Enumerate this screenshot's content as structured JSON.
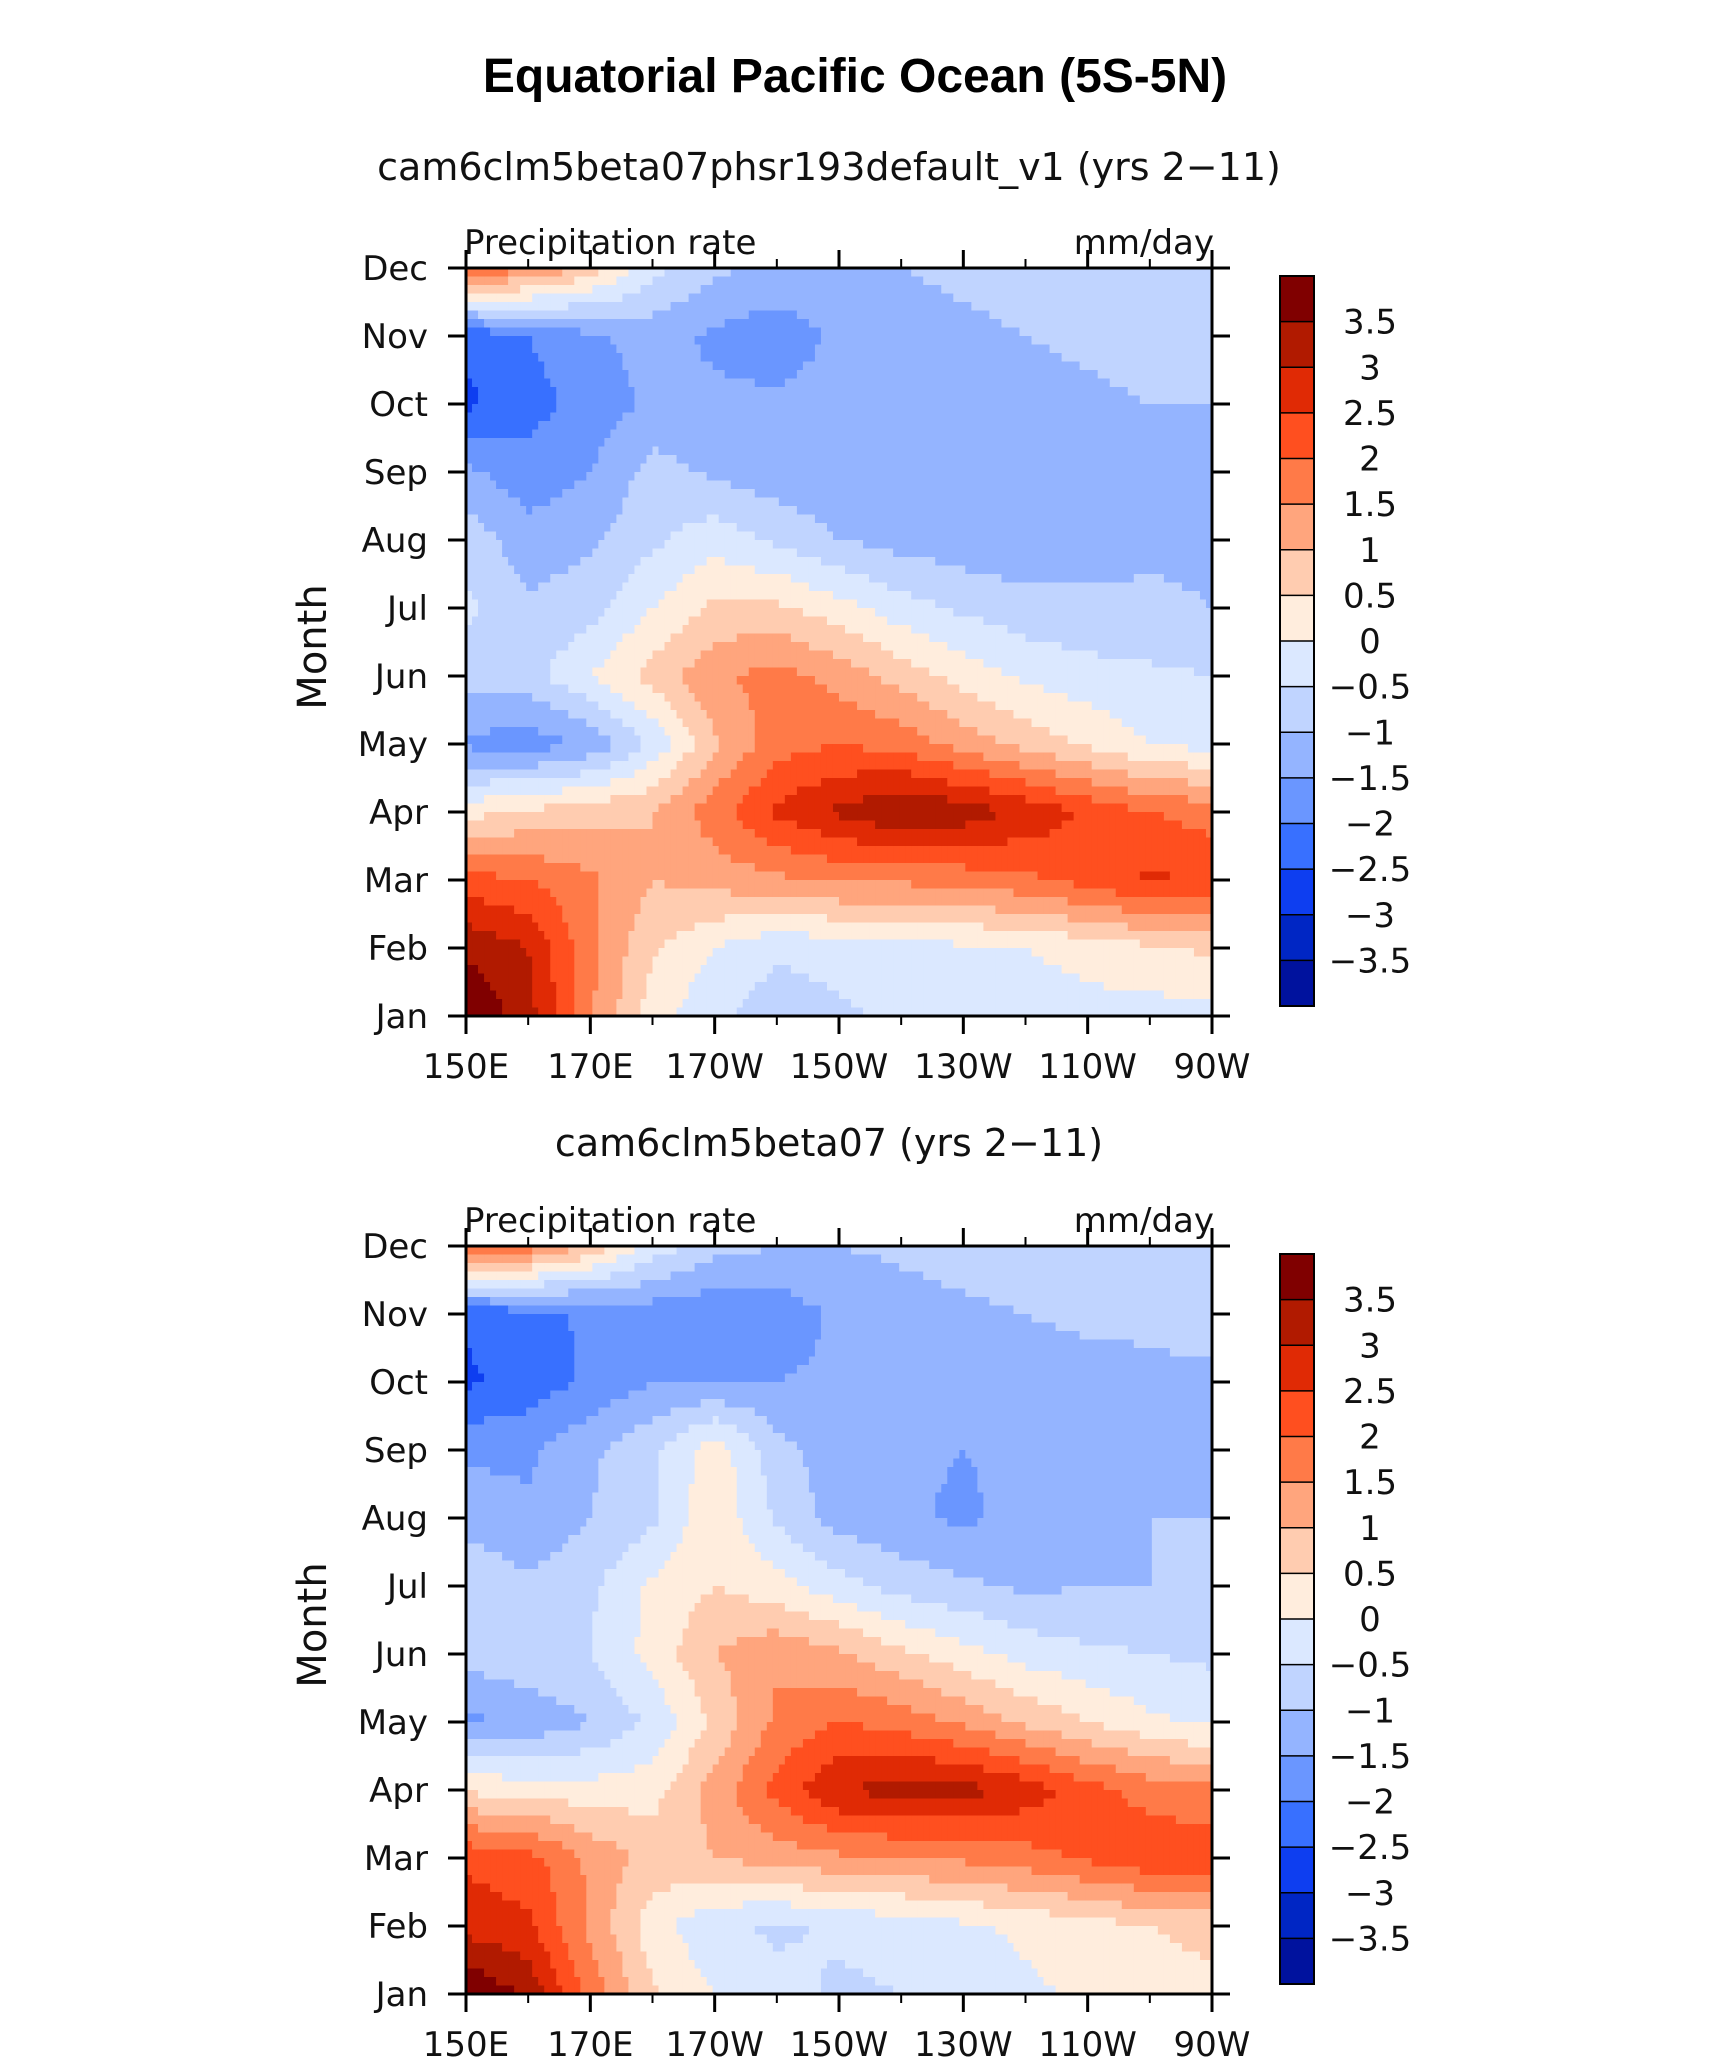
{
  "figure": {
    "title": "Equatorial Pacific Ocean (5S-5N)"
  },
  "chart_data": [
    {
      "type": "heatmap",
      "title": "cam6clm5beta07phsr193default_v1 (yrs 2−11)",
      "left_label": "Precipitation rate",
      "right_label": "mm/day",
      "ylabel": "Month",
      "xticks": [
        "150E",
        "170E",
        "170W",
        "150W",
        "130W",
        "110W",
        "90W"
      ],
      "xlim_deg_east": [
        150,
        270
      ],
      "yticks": [
        "Jan",
        "Feb",
        "Mar",
        "Apr",
        "May",
        "Jun",
        "Jul",
        "Aug",
        "Sep",
        "Oct",
        "Nov",
        "Dec"
      ],
      "contour_levels": [
        -3.5,
        -3,
        -2.5,
        -2,
        -1.5,
        -1,
        -0.5,
        0,
        0.5,
        1,
        1.5,
        2,
        2.5,
        3,
        3.5
      ],
      "colorbar_labels": [
        "3.5",
        "3",
        "2.5",
        "2",
        "1.5",
        "1",
        "0.5",
        "0",
        "−0.5",
        "−1",
        "−1.5",
        "−2",
        "−2.5",
        "−3",
        "−3.5"
      ],
      "x_deg_east": [
        150,
        160,
        170,
        180,
        190,
        200,
        210,
        220,
        230,
        240,
        250,
        260,
        270
      ],
      "values": [
        [
          4.0,
          3.2,
          1.6,
          0.2,
          -0.4,
          -0.8,
          -0.6,
          -0.4,
          -0.3,
          -0.3,
          -0.2,
          -0.2,
          -0.2
        ],
        [
          3.4,
          3.0,
          1.6,
          0.6,
          0.0,
          -0.4,
          -0.3,
          -0.2,
          -0.1,
          0.0,
          0.2,
          0.4,
          0.6
        ],
        [
          2.2,
          2.0,
          1.6,
          1.0,
          1.2,
          1.4,
          1.6,
          1.6,
          1.7,
          1.9,
          2.2,
          2.6,
          2.4
        ],
        [
          0.3,
          0.6,
          0.8,
          1.0,
          1.8,
          2.6,
          3.1,
          3.5,
          3.3,
          2.9,
          2.4,
          2.0,
          1.8
        ],
        [
          -1.6,
          -1.8,
          -1.4,
          -0.4,
          0.9,
          1.8,
          2.0,
          1.8,
          1.3,
          0.8,
          0.4,
          0.0,
          -0.2
        ],
        [
          -0.8,
          -0.7,
          0.0,
          0.7,
          1.4,
          1.7,
          1.3,
          0.8,
          0.3,
          -0.1,
          -0.3,
          -0.4,
          -0.5
        ],
        [
          -0.4,
          -0.9,
          -0.7,
          0.0,
          0.6,
          0.6,
          0.2,
          -0.3,
          -0.6,
          -0.8,
          -0.9,
          -0.9,
          -1.0
        ],
        [
          -0.7,
          -1.3,
          -1.1,
          -0.6,
          -0.2,
          -0.6,
          -1.0,
          -1.2,
          -1.3,
          -1.4,
          -1.2,
          -1.1,
          -1.1
        ],
        [
          -1.4,
          -1.8,
          -1.5,
          -0.8,
          -1.1,
          -1.3,
          -1.4,
          -1.4,
          -1.4,
          -1.4,
          -1.3,
          -1.2,
          -1.1
        ],
        [
          -2.6,
          -2.2,
          -1.8,
          -1.4,
          -1.4,
          -1.4,
          -1.3,
          -1.3,
          -1.3,
          -1.2,
          -1.1,
          -1.0,
          -1.0
        ],
        [
          -2.4,
          -2.0,
          -1.6,
          -1.3,
          -1.6,
          -1.8,
          -1.4,
          -1.2,
          -1.1,
          -1.0,
          -0.9,
          -0.8,
          -0.8
        ],
        [
          2.0,
          1.6,
          0.8,
          -0.3,
          -0.9,
          -1.1,
          -1.1,
          -1.0,
          -0.9,
          -0.8,
          -0.8,
          -0.7,
          -0.7
        ]
      ]
    },
    {
      "type": "heatmap",
      "title": "cam6clm5beta07 (yrs 2−11)",
      "left_label": "Precipitation rate",
      "right_label": "mm/day",
      "ylabel": "Month",
      "xticks": [
        "150E",
        "170E",
        "170W",
        "150W",
        "130W",
        "110W",
        "90W"
      ],
      "xlim_deg_east": [
        150,
        270
      ],
      "yticks": [
        "Jan",
        "Feb",
        "Mar",
        "Apr",
        "May",
        "Jun",
        "Jul",
        "Aug",
        "Sep",
        "Oct",
        "Nov",
        "Dec"
      ],
      "contour_levels": [
        -3.5,
        -3,
        -2.5,
        -2,
        -1.5,
        -1,
        -0.5,
        0,
        0.5,
        1,
        1.5,
        2,
        2.5,
        3,
        3.5
      ],
      "colorbar_labels": [
        "3.5",
        "3",
        "2.5",
        "2",
        "1.5",
        "1",
        "0.5",
        "0",
        "−0.5",
        "−1",
        "−1.5",
        "−2",
        "−2.5",
        "−3",
        "−3.5"
      ],
      "x_deg_east": [
        150,
        160,
        170,
        180,
        190,
        200,
        210,
        220,
        230,
        240,
        250,
        260,
        270
      ],
      "values": [
        [
          4.0,
          3.4,
          1.8,
          0.6,
          0.0,
          -0.3,
          -0.6,
          -0.5,
          -0.3,
          -0.1,
          0.1,
          0.2,
          0.3
        ],
        [
          2.8,
          2.6,
          1.4,
          0.2,
          -0.4,
          -0.6,
          -0.4,
          -0.3,
          -0.1,
          0.1,
          0.3,
          0.5,
          0.7
        ],
        [
          2.4,
          2.2,
          1.4,
          0.8,
          1.0,
          1.2,
          1.4,
          1.5,
          1.6,
          1.8,
          2.1,
          2.4,
          2.3
        ],
        [
          0.4,
          0.3,
          0.2,
          0.3,
          1.2,
          2.2,
          3.0,
          3.2,
          3.2,
          2.8,
          2.2,
          1.8,
          1.6
        ],
        [
          -1.6,
          -1.4,
          -1.0,
          -0.4,
          0.6,
          1.6,
          2.0,
          1.8,
          1.4,
          0.9,
          0.5,
          0.1,
          -0.1
        ],
        [
          -0.8,
          -0.6,
          -0.5,
          0.2,
          1.0,
          1.4,
          1.1,
          0.6,
          0.2,
          -0.2,
          -0.4,
          -0.5,
          -0.6
        ],
        [
          -0.6,
          -0.9,
          -0.6,
          0.1,
          0.5,
          0.2,
          -0.3,
          -0.7,
          -0.9,
          -1.1,
          -1.0,
          -1.0,
          -1.0
        ],
        [
          -1.2,
          -1.4,
          -1.0,
          -0.6,
          0.4,
          -0.6,
          -1.2,
          -1.4,
          -1.6,
          -1.3,
          -1.1,
          -1.0,
          -1.0
        ],
        [
          -1.6,
          -1.6,
          -1.1,
          -0.6,
          0.3,
          -0.8,
          -1.3,
          -1.4,
          -1.5,
          -1.4,
          -1.3,
          -1.2,
          -1.2
        ],
        [
          -2.6,
          -2.3,
          -1.9,
          -1.5,
          -1.5,
          -1.5,
          -1.4,
          -1.3,
          -1.3,
          -1.2,
          -1.2,
          -1.1,
          -1.1
        ],
        [
          -2.4,
          -2.2,
          -1.9,
          -1.8,
          -1.9,
          -1.8,
          -1.4,
          -1.2,
          -1.1,
          -1.0,
          -0.9,
          -0.9,
          -0.8
        ],
        [
          2.2,
          1.8,
          0.9,
          -0.2,
          -0.8,
          -1.0,
          -1.0,
          -0.9,
          -0.8,
          -0.7,
          -0.7,
          -0.6,
          -0.6
        ]
      ]
    }
  ]
}
